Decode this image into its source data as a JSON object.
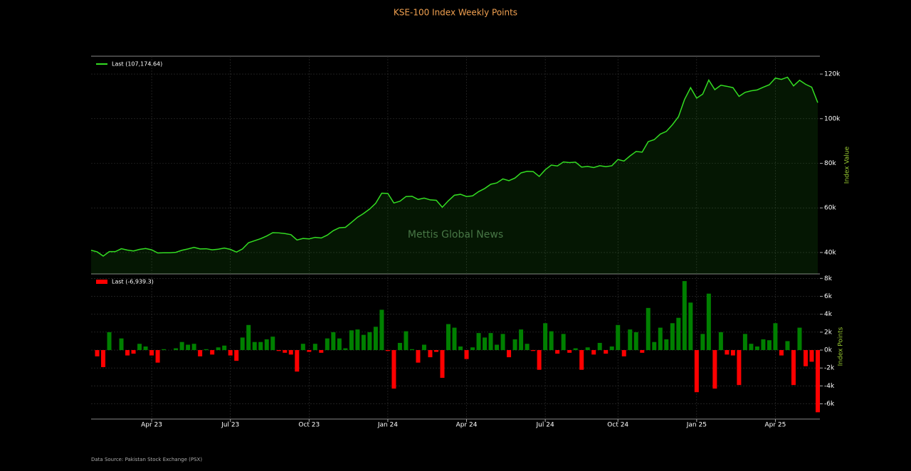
{
  "title": "KSE-100 Index Weekly Points",
  "watermark": "Mettis Global News",
  "source": "Data Source: Pakistan Stock Exchange (PSX)",
  "chart_data": [
    {
      "type": "line",
      "y_label": "Index Value",
      "grid": true,
      "legend": "upper left",
      "ylim": [
        30400,
        128000
      ],
      "yticks": [
        {
          "value": 40000,
          "label": "40k"
        },
        {
          "value": 60000,
          "label": "60k"
        },
        {
          "value": 80000,
          "label": "80k"
        },
        {
          "value": 100000,
          "label": "100k"
        },
        {
          "value": 120000,
          "label": "120k"
        }
      ],
      "series": [
        {
          "name": "Last (107,174.64)",
          "color": "#33dd22",
          "values": [
            41000,
            40300,
            38400,
            40400,
            40400,
            41700,
            41100,
            40700,
            41400,
            41800,
            41200,
            39800,
            39900,
            39900,
            40100,
            41000,
            41600,
            42300,
            41600,
            41700,
            41200,
            41500,
            42000,
            41400,
            40200,
            41600,
            44400,
            45300,
            46200,
            47400,
            48900,
            48800,
            48500,
            48000,
            45600,
            46300,
            46100,
            46800,
            46500,
            47800,
            49800,
            51100,
            51300,
            53500,
            55800,
            57500,
            59500,
            62100,
            66600,
            66500,
            62200,
            63000,
            65100,
            65200,
            63800,
            64400,
            63600,
            63400,
            60300,
            63200,
            65700,
            66100,
            65100,
            65400,
            67300,
            68700,
            70600,
            71200,
            73000,
            72200,
            73400,
            75700,
            76400,
            76300,
            74100,
            77100,
            79200,
            78800,
            80600,
            80300,
            80500,
            78300,
            78600,
            78100,
            78900,
            78500,
            78900,
            81700,
            81000,
            83300,
            85300,
            85000,
            89700,
            90600,
            93100,
            94300,
            97300,
            100900,
            108600,
            113900,
            109200,
            111000,
            117300,
            113000,
            115000,
            114500,
            113900,
            110000,
            111800,
            112500,
            112900,
            114100,
            115200,
            118200,
            117600,
            118600,
            114700,
            117200,
            115400,
            114100,
            107174.64
          ]
        }
      ]
    },
    {
      "type": "bar",
      "y_label": "Index Points",
      "grid": true,
      "legend": "upper left",
      "categories": [
        null,
        null,
        null,
        null,
        null,
        null,
        null,
        null,
        null,
        null,
        "Apr 23",
        null,
        null,
        null,
        null,
        null,
        null,
        null,
        null,
        null,
        null,
        null,
        null,
        "Jul 23",
        null,
        null,
        null,
        null,
        null,
        null,
        null,
        null,
        null,
        null,
        null,
        null,
        "Oct 23",
        null,
        null,
        null,
        null,
        null,
        null,
        null,
        null,
        null,
        null,
        null,
        null,
        "Jan 24",
        null,
        null,
        null,
        null,
        null,
        null,
        null,
        null,
        null,
        null,
        null,
        null,
        "Apr 24",
        null,
        null,
        null,
        null,
        null,
        null,
        null,
        null,
        null,
        null,
        null,
        null,
        "Jul 24",
        null,
        null,
        null,
        null,
        null,
        null,
        null,
        null,
        null,
        null,
        null,
        "Oct 24",
        null,
        null,
        null,
        null,
        null,
        null,
        null,
        null,
        null,
        null,
        null,
        null,
        "Jan 25",
        null,
        null,
        null,
        null,
        null,
        null,
        null,
        null,
        null,
        null,
        null,
        null,
        "Apr 25",
        null,
        null,
        null,
        null,
        null,
        null,
        null
      ],
      "ylim": [
        -7700,
        8500
      ],
      "yticks": [
        {
          "value": -6000,
          "label": "-6k"
        },
        {
          "value": -4000,
          "label": "-4k"
        },
        {
          "value": -2000,
          "label": "-2k"
        },
        {
          "value": 0,
          "label": "0k"
        },
        {
          "value": 2000,
          "label": "2k"
        },
        {
          "value": 4000,
          "label": "4k"
        },
        {
          "value": 6000,
          "label": "6k"
        },
        {
          "value": 8000,
          "label": "8k"
        }
      ],
      "series": [
        {
          "name": "Last (-6,939.3)",
          "color": "#008000",
          "negative_color": "#ff0000",
          "values": [
            null,
            -700,
            -1900,
            2000,
            0,
            1300,
            -600,
            -400,
            700,
            400,
            -600,
            -1400,
            100,
            0,
            200,
            900,
            600,
            700,
            -700,
            100,
            -500,
            300,
            500,
            -600,
            -1200,
            1400,
            2800,
            900,
            900,
            1200,
            1500,
            -100,
            -300,
            -500,
            -2400,
            700,
            -200,
            700,
            -300,
            1300,
            2000,
            1300,
            200,
            2200,
            2300,
            1700,
            2000,
            2600,
            4500,
            -100,
            -4300,
            800,
            2100,
            100,
            -1400,
            600,
            -800,
            -200,
            -3100,
            2900,
            2500,
            400,
            -1000,
            300,
            1900,
            1400,
            1900,
            600,
            1800,
            -800,
            1200,
            2300,
            700,
            -100,
            -2200,
            3000,
            2100,
            -400,
            1800,
            -300,
            200,
            -2200,
            300,
            -500,
            800,
            -400,
            400,
            2800,
            -700,
            2300,
            2000,
            -300,
            4700,
            900,
            2500,
            1200,
            3000,
            3600,
            7700,
            5300,
            -4700,
            1800,
            6300,
            -4300,
            2000,
            -500,
            -600,
            -3900,
            1800,
            700,
            400,
            1200,
            1100,
            3000,
            -600,
            1000,
            -3900,
            2500,
            -1800,
            -1300,
            -6939.3
          ]
        }
      ]
    }
  ]
}
